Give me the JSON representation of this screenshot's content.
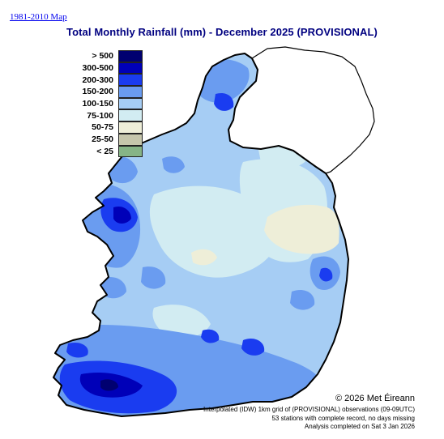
{
  "header": {
    "link_label": "1981-2010 Map",
    "title": "Total Monthly Rainfall (mm) - December 2025  (PROVISIONAL)"
  },
  "legend": {
    "items": [
      {
        "label": "> 500",
        "color": "#000070"
      },
      {
        "label": "300-500",
        "color": "#0000b8"
      },
      {
        "label": "200-300",
        "color": "#1a3cf0"
      },
      {
        "label": "150-200",
        "color": "#6a9cf0"
      },
      {
        "label": "100-150",
        "color": "#a6cdf4"
      },
      {
        "label": "75-100",
        "color": "#d2ecf2"
      },
      {
        "label": "50-75",
        "color": "#eeeed8"
      },
      {
        "label": "25-50",
        "color": "#c6c6ac"
      },
      {
        "label": "< 25",
        "color": "#86b486"
      }
    ]
  },
  "footer": {
    "credit": "© 2026 Met Éireann",
    "notes": [
      "Interpolated (IDW) 1km grid of  (PROVISIONAL) observations (09-09UTC)",
      "53 stations with complete record, no days missing",
      "Analysis completed on Sat 3 Jan 2026"
    ]
  }
}
